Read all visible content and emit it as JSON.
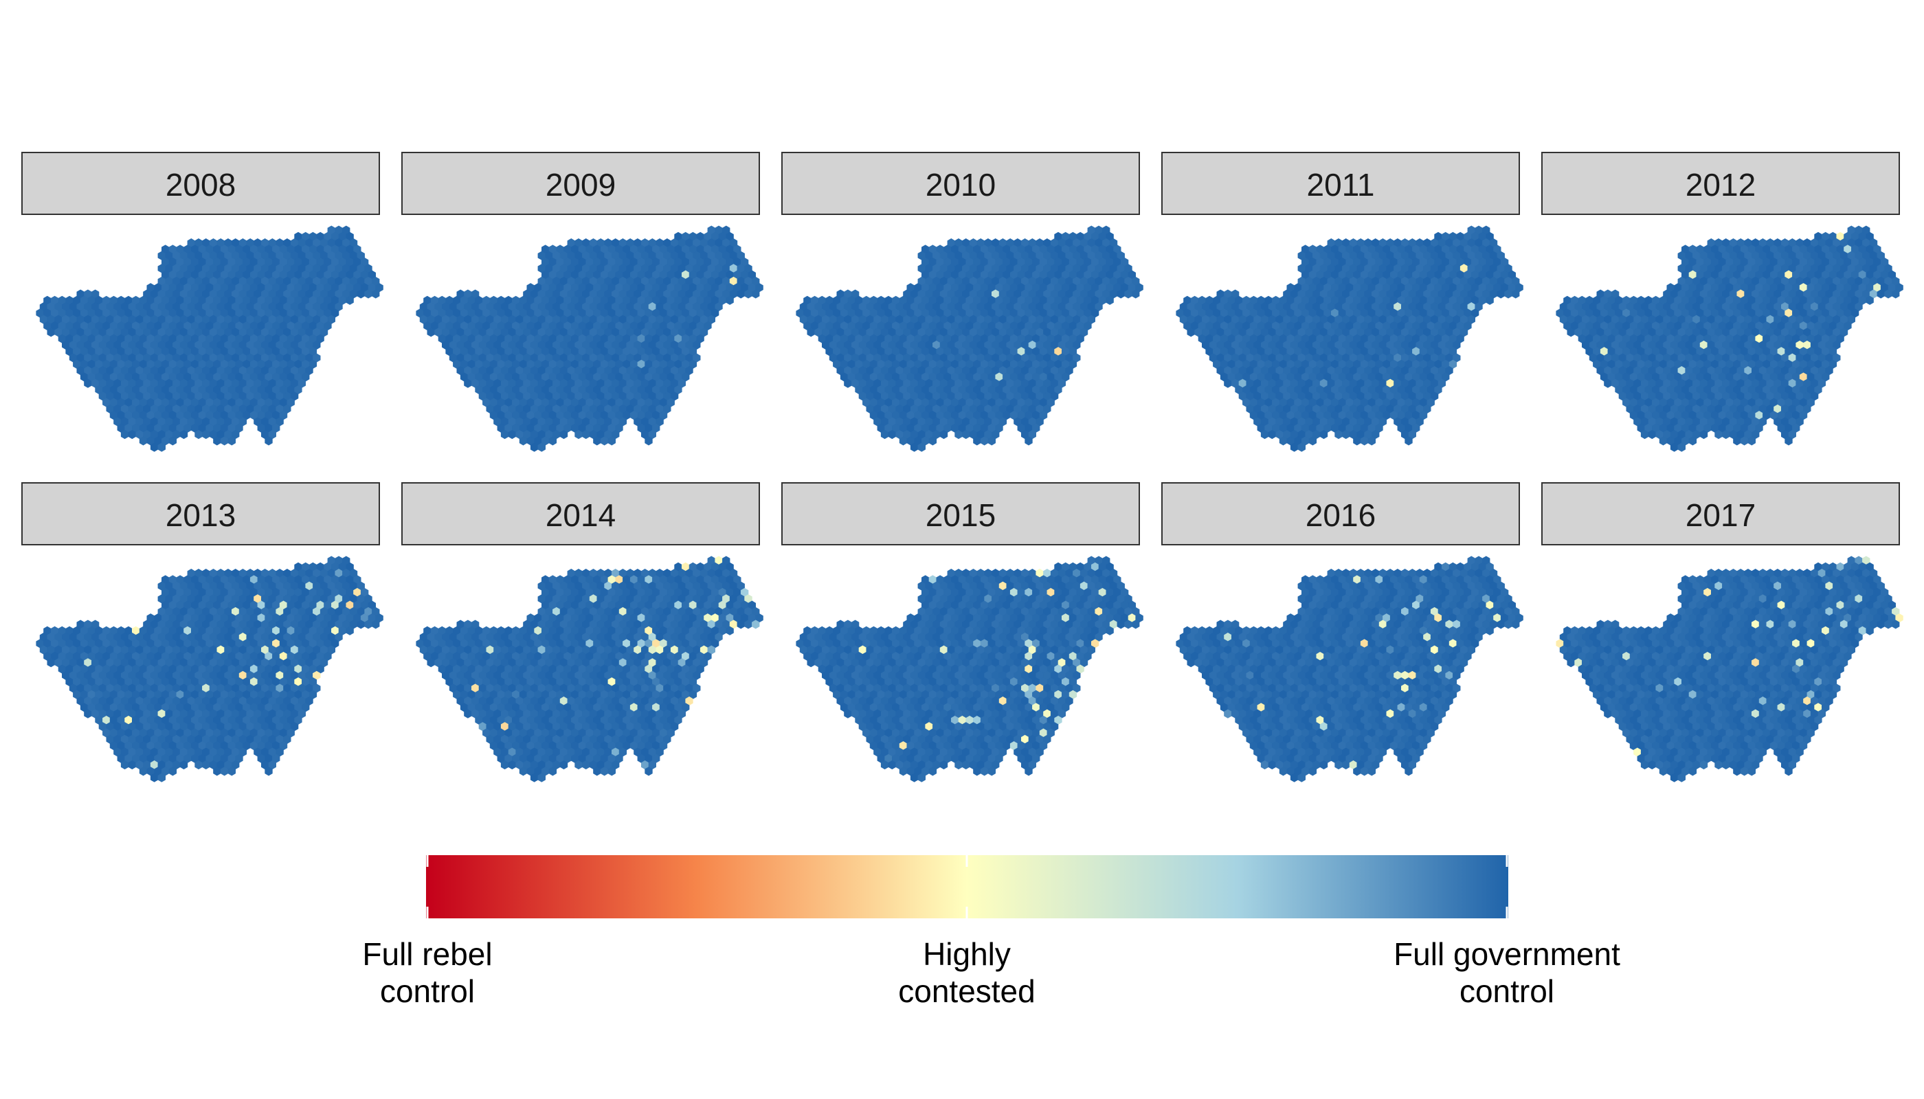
{
  "chart_data": {
    "type": "heatmap",
    "subtype": "faceted hexbin map",
    "facets": [
      {
        "label": "2008",
        "contested": 0
      },
      {
        "label": "2009",
        "contested": 8
      },
      {
        "label": "2010",
        "contested": 8
      },
      {
        "label": "2011",
        "contested": 10
      },
      {
        "label": "2012",
        "contested": 30
      },
      {
        "label": "2013",
        "contested": 50
      },
      {
        "label": "2014",
        "contested": 70
      },
      {
        "label": "2015",
        "contested": 65
      },
      {
        "label": "2016",
        "contested": 45
      },
      {
        "label": "2017",
        "contested": 45
      }
    ],
    "legend": {
      "type": "colorbar",
      "labels": [
        "Full rebel\ncontrol",
        "Highly\ncontested",
        "Full government\ncontrol"
      ],
      "colors": [
        "#c4001a",
        "#f6854a",
        "#ffffbf",
        "#a6d3e2",
        "#2064aa"
      ]
    }
  }
}
